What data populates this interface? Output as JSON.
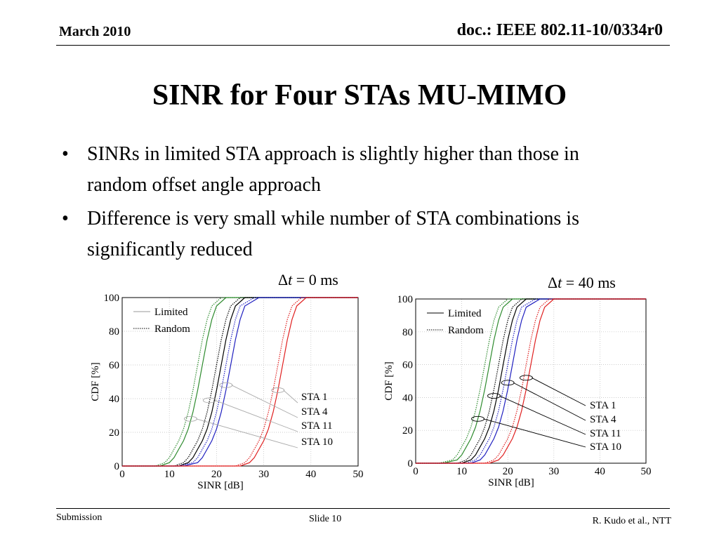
{
  "header": {
    "date": "March 2010",
    "doc": "doc.: IEEE 802.11-10/0334r0"
  },
  "slide": {
    "title": "SINR for Four STAs MU-MIMO",
    "bullets": [
      "SINRs in limited STA approach is slightly higher than those in random offset angle approach",
      "Difference is very small while number of STA combinations is significantly reduced"
    ],
    "bullet_glyph": "•"
  },
  "footer": {
    "left": "Submission",
    "center": "Slide 10",
    "right": "R. Kudo  et al., NTT"
  },
  "chart_data": [
    {
      "type": "line",
      "title_symbol": "Δ",
      "title_var": "t",
      "title_rest": " = 0 ms",
      "xlabel": "SINR [dB]",
      "ylabel": "CDF [%]",
      "xlim": [
        0,
        50
      ],
      "ylim": [
        0,
        100
      ],
      "xticks": [
        0,
        10,
        20,
        30,
        40,
        50
      ],
      "yticks": [
        0,
        20,
        40,
        60,
        80,
        100
      ],
      "grid": true,
      "legend": {
        "placement": "top-left",
        "entries": [
          "Limited",
          "Random"
        ]
      },
      "annotations": [
        "STA 1",
        "STA 4",
        "STA 11",
        "STA 10"
      ],
      "series": [
        {
          "color": "#2e8b2e",
          "style": "solid",
          "x": [
            8,
            10,
            11,
            12,
            13,
            14,
            15,
            16,
            17,
            18,
            19,
            20,
            22
          ],
          "y": [
            0,
            2,
            5,
            10,
            15,
            22,
            32,
            45,
            60,
            75,
            87,
            95,
            100
          ]
        },
        {
          "color": "#2e8b2e",
          "style": "dotted",
          "x": [
            7,
            9,
            10,
            11,
            12,
            13,
            14,
            15,
            16,
            17,
            18,
            19,
            21
          ],
          "y": [
            0,
            2,
            5,
            10,
            15,
            22,
            32,
            45,
            60,
            75,
            87,
            95,
            100
          ]
        },
        {
          "color": "#000000",
          "style": "solid",
          "x": [
            12,
            14,
            15,
            16,
            17,
            18,
            19,
            20,
            21,
            22,
            23,
            24,
            26
          ],
          "y": [
            0,
            2,
            5,
            10,
            15,
            22,
            32,
            45,
            60,
            75,
            87,
            95,
            100
          ]
        },
        {
          "color": "#000000",
          "style": "dotted",
          "x": [
            11,
            13,
            14,
            15,
            16,
            17,
            18,
            19,
            20,
            21,
            22,
            23,
            25
          ],
          "y": [
            0,
            2,
            5,
            10,
            15,
            22,
            32,
            45,
            60,
            75,
            87,
            95,
            100
          ]
        },
        {
          "color": "#2020c0",
          "style": "solid",
          "x": [
            13,
            16,
            17,
            18,
            19,
            20,
            21,
            22,
            23,
            24,
            25,
            26,
            29
          ],
          "y": [
            0,
            2,
            5,
            10,
            15,
            22,
            32,
            45,
            60,
            75,
            87,
            95,
            100
          ]
        },
        {
          "color": "#2020c0",
          "style": "dotted",
          "x": [
            12,
            15,
            16,
            17,
            18,
            19,
            20,
            21,
            22,
            23,
            24,
            25,
            28
          ],
          "y": [
            0,
            2,
            5,
            10,
            15,
            22,
            32,
            45,
            60,
            75,
            87,
            95,
            100
          ]
        },
        {
          "color": "#e02020",
          "style": "solid",
          "x": [
            25,
            27,
            28,
            29,
            30,
            31,
            32,
            33,
            34,
            35,
            36,
            37,
            39
          ],
          "y": [
            0,
            2,
            5,
            10,
            15,
            22,
            32,
            45,
            60,
            75,
            87,
            95,
            100
          ]
        },
        {
          "color": "#e02020",
          "style": "dotted",
          "x": [
            24,
            26,
            27,
            28,
            29,
            30,
            31,
            32,
            33,
            34,
            35,
            36,
            38
          ],
          "y": [
            0,
            2,
            5,
            10,
            15,
            22,
            32,
            45,
            60,
            75,
            87,
            95,
            100
          ]
        }
      ],
      "callouts": [
        {
          "x": 33,
          "y": 45,
          "label": 0
        },
        {
          "x": 22,
          "y": 48,
          "label": 1
        },
        {
          "x": 18.5,
          "y": 39,
          "label": 2
        },
        {
          "x": 14.5,
          "y": 28,
          "label": 3
        }
      ]
    },
    {
      "type": "line",
      "title_symbol": "Δ",
      "title_var": "t",
      "title_rest": " = 40 ms",
      "xlabel": "SINR [dB]",
      "ylabel": "CDF [%]",
      "xlim": [
        0,
        50
      ],
      "ylim": [
        0,
        100
      ],
      "xticks": [
        0,
        10,
        20,
        30,
        40,
        50
      ],
      "yticks": [
        0,
        20,
        40,
        60,
        80,
        100
      ],
      "grid": true,
      "legend": {
        "placement": "top-left",
        "entries": [
          "Limited",
          "Random"
        ]
      },
      "annotations": [
        "STA 1",
        "STA 4",
        "STA 11",
        "STA 10"
      ],
      "series": [
        {
          "color": "#2e8b2e",
          "style": "solid",
          "x": [
            6,
            9,
            10,
            11,
            12,
            13,
            14,
            15,
            16,
            17,
            18,
            19,
            21
          ],
          "y": [
            0,
            2,
            5,
            10,
            15,
            22,
            32,
            45,
            60,
            75,
            87,
            95,
            100
          ]
        },
        {
          "color": "#2e8b2e",
          "style": "dotted",
          "x": [
            5,
            8,
            9,
            10,
            11,
            12,
            13,
            14,
            15,
            16,
            17,
            18,
            20
          ],
          "y": [
            0,
            2,
            5,
            10,
            15,
            22,
            32,
            45,
            60,
            75,
            87,
            95,
            100
          ]
        },
        {
          "color": "#000000",
          "style": "solid",
          "x": [
            10,
            12,
            13,
            14,
            15,
            16,
            17,
            18,
            19,
            20,
            21,
            22,
            24
          ],
          "y": [
            0,
            2,
            5,
            10,
            15,
            22,
            32,
            45,
            60,
            75,
            87,
            95,
            100
          ]
        },
        {
          "color": "#000000",
          "style": "dotted",
          "x": [
            9,
            11,
            12,
            13,
            14,
            15,
            16,
            17,
            18,
            19,
            20,
            21,
            23
          ],
          "y": [
            0,
            2,
            5,
            10,
            15,
            22,
            32,
            45,
            60,
            75,
            87,
            95,
            100
          ]
        },
        {
          "color": "#2020c0",
          "style": "solid",
          "x": [
            12,
            14,
            15,
            16,
            17,
            18,
            19,
            20,
            21,
            22,
            23,
            24,
            27
          ],
          "y": [
            0,
            2,
            5,
            10,
            15,
            22,
            32,
            45,
            60,
            75,
            87,
            95,
            100
          ]
        },
        {
          "color": "#2020c0",
          "style": "dotted",
          "x": [
            11,
            13,
            14,
            15,
            16,
            17,
            18,
            19,
            20,
            21,
            22,
            23,
            26
          ],
          "y": [
            0,
            2,
            5,
            10,
            15,
            22,
            32,
            45,
            60,
            75,
            87,
            95,
            100
          ]
        },
        {
          "color": "#e02020",
          "style": "solid",
          "x": [
            16,
            18,
            19,
            20,
            21,
            22,
            23,
            24,
            25,
            26,
            27,
            28,
            30
          ],
          "y": [
            0,
            2,
            5,
            10,
            15,
            22,
            32,
            45,
            60,
            75,
            87,
            95,
            100
          ]
        },
        {
          "color": "#e02020",
          "style": "dotted",
          "x": [
            15,
            17,
            18,
            19,
            20,
            21,
            22,
            23,
            24,
            25,
            26,
            27,
            29
          ],
          "y": [
            0,
            2,
            5,
            10,
            15,
            22,
            32,
            45,
            60,
            75,
            87,
            95,
            100
          ]
        }
      ],
      "callouts": [
        {
          "x": 24,
          "y": 52,
          "label": 0
        },
        {
          "x": 20,
          "y": 49,
          "label": 1
        },
        {
          "x": 17,
          "y": 41,
          "label": 2
        },
        {
          "x": 13.5,
          "y": 27,
          "label": 3
        }
      ]
    }
  ]
}
